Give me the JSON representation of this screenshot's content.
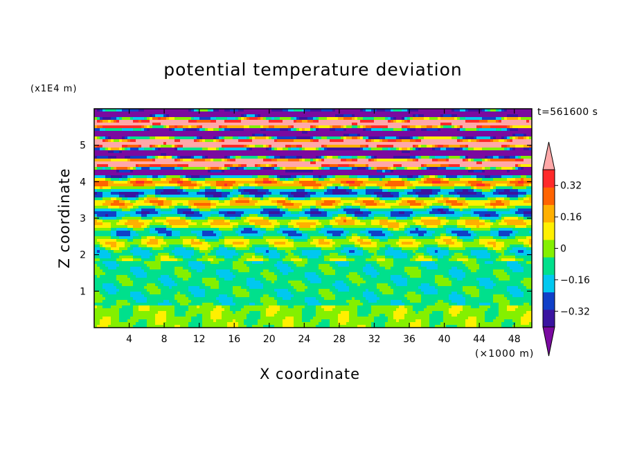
{
  "colors": {
    "bands": [
      "#7a0aa0",
      "#3a14a0",
      "#1040c8",
      "#00c8f0",
      "#00e08c",
      "#84f000",
      "#fff000",
      "#ffb000",
      "#ff6400",
      "#ff2a2a",
      "#ffa8a8"
    ],
    "frame": "#000000"
  },
  "chart_data": {
    "type": "heatmap",
    "title": "potential temperature deviation",
    "xlabel": "X coordinate",
    "ylabel": "Z coordinate",
    "x_scale_label": "(×1000 m)",
    "z_scale_label": "(x1E4 m)",
    "time_label": "t=561600 s",
    "xlim": [
      0,
      50
    ],
    "ylim": [
      0,
      6
    ],
    "x_ticks": [
      4,
      8,
      12,
      16,
      20,
      24,
      28,
      32,
      36,
      40,
      44,
      48
    ],
    "x_tick_labels": [
      "4",
      "8",
      "12",
      "16",
      "20",
      "24",
      "28",
      "32",
      "36",
      "40",
      "44",
      "48"
    ],
    "y_ticks": [
      1,
      2,
      3,
      4,
      5
    ],
    "y_tick_labels": [
      "1",
      "2",
      "3",
      "4",
      "5"
    ],
    "colorbar": {
      "levels": [
        -0.4,
        -0.32,
        -0.24,
        -0.16,
        -0.08,
        0,
        0.08,
        0.16,
        0.24,
        0.32,
        0.4
      ],
      "tick_values": [
        0.32,
        0.16,
        0,
        -0.16,
        -0.32
      ],
      "tick_labels": [
        "0.32",
        "0.16",
        "0",
        "−0.16",
        "−0.32"
      ],
      "extend": "both"
    },
    "vertical_structure": [
      {
        "z_range": [
          0,
          0.6
        ],
        "dominant": "0 to 0.08 (light green)"
      },
      {
        "z_range": [
          0.6,
          1.8
        ],
        "dominant": "-0.08 to 0 (green)"
      },
      {
        "z_range": [
          1.8,
          4.2
        ],
        "dominant": "mixed bands -0.32 to 0.4"
      },
      {
        "z_range": [
          4.2,
          6.0
        ],
        "dominant": "alternating < -0.4 and > 0.4"
      }
    ]
  }
}
